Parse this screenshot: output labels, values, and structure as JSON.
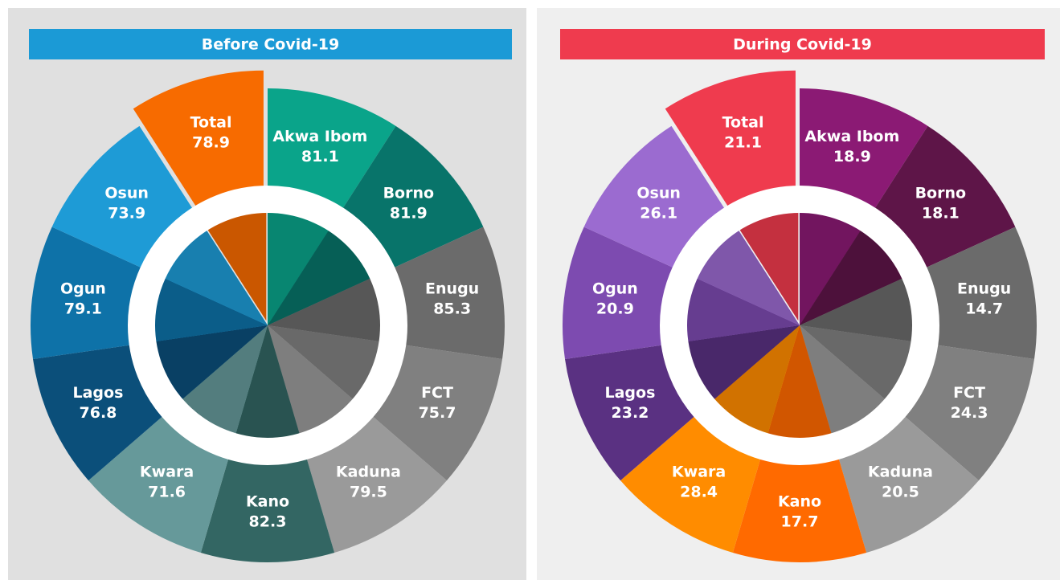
{
  "panels": [
    {
      "title": "Before Covid-19",
      "banner_color": "#1b9ad6",
      "background": "#e0e0e0",
      "slices": [
        {
          "label": "Akwa Ibom",
          "value": 81.1,
          "color": "#0aa48a"
        },
        {
          "label": "Borno",
          "value": 81.9,
          "color": "#08746a"
        },
        {
          "label": "Enugu",
          "value": 85.3,
          "color": "#6b6b6b"
        },
        {
          "label": "FCT",
          "value": 75.7,
          "color": "#808080"
        },
        {
          "label": "Kaduna",
          "value": 79.5,
          "color": "#9a9a9a"
        },
        {
          "label": "Kano",
          "value": 82.3,
          "color": "#336663"
        },
        {
          "label": "Kwara",
          "value": 71.6,
          "color": "#66999a"
        },
        {
          "label": "Lagos",
          "value": 76.8,
          "color": "#0b4f7a"
        },
        {
          "label": "Ogun",
          "value": 79.1,
          "color": "#0e72a8"
        },
        {
          "label": "Osun",
          "value": 73.9,
          "color": "#1e9bd6"
        },
        {
          "label": "Total",
          "value": 78.9,
          "color": "#f76b00"
        }
      ]
    },
    {
      "title": "During Covid-19",
      "banner_color": "#ef3b4e",
      "background": "#efefef",
      "slices": [
        {
          "label": "Akwa Ibom",
          "value": 18.9,
          "color": "#8b1a74"
        },
        {
          "label": "Borno",
          "value": 18.1,
          "color": "#5e1548"
        },
        {
          "label": "Enugu",
          "value": 14.7,
          "color": "#6b6b6b"
        },
        {
          "label": "FCT",
          "value": 24.3,
          "color": "#808080"
        },
        {
          "label": "Kaduna",
          "value": 20.5,
          "color": "#9a9a9a"
        },
        {
          "label": "Kano",
          "value": 17.7,
          "color": "#ff6a00"
        },
        {
          "label": "Kwara",
          "value": 28.4,
          "color": "#ff8c00"
        },
        {
          "label": "Lagos",
          "value": 23.2,
          "color": "#5a3182"
        },
        {
          "label": "Ogun",
          "value": 20.9,
          "color": "#7d4bb0"
        },
        {
          "label": "Osun",
          "value": 26.1,
          "color": "#9b6bd0"
        },
        {
          "label": "Total",
          "value": 21.1,
          "color": "#ef3b4e"
        }
      ]
    }
  ]
}
